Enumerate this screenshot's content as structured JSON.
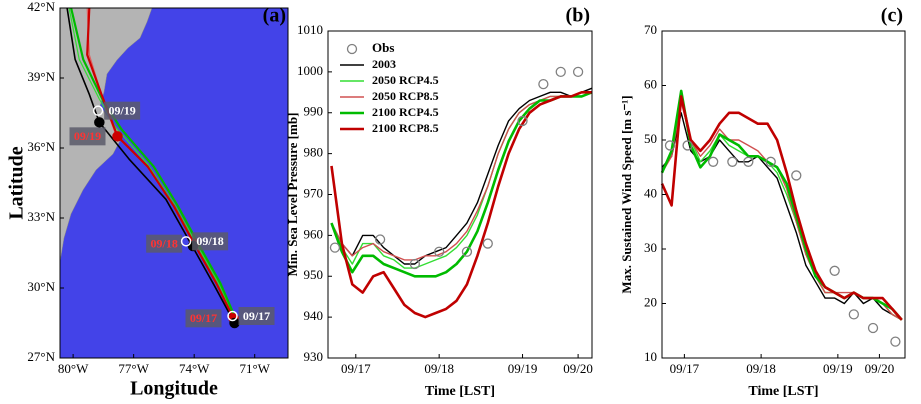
{
  "chart_data": [
    {
      "type": "map",
      "title": "(a)",
      "xlabel": "Longitude",
      "ylabel": "Latitude",
      "xlim": [
        -80.65,
        -69.35
      ],
      "ylim": [
        27,
        42
      ],
      "xticks": [
        {
          "value": -80,
          "label": "80°W"
        },
        {
          "value": -77,
          "label": "77°W"
        },
        {
          "value": -74,
          "label": "74°W"
        },
        {
          "value": -71,
          "label": "71°W"
        }
      ],
      "yticks": [
        {
          "value": 27,
          "label": "27°N"
        },
        {
          "value": 30,
          "label": "30°N"
        },
        {
          "value": 33,
          "label": "33°N"
        },
        {
          "value": 36,
          "label": "36°N"
        },
        {
          "value": 39,
          "label": "39°N"
        },
        {
          "value": 42,
          "label": "42°N"
        }
      ],
      "series": [
        {
          "color": "#e06060",
          "linewidth": 1.2,
          "x": [
            -79.3,
            -79.2,
            -78.6,
            -77.9,
            -76.3,
            -75.0,
            -74.0,
            -72.9,
            -72.0
          ],
          "values": [
            42,
            40.0,
            38.3,
            36.6,
            35.2,
            33.5,
            31.9,
            30.2,
            28.7
          ]
        },
        {
          "color": "#33dd33",
          "linewidth": 1.2,
          "x": [
            -80.2,
            -79.7,
            -78.7,
            -77.9,
            -76.3,
            -75.0,
            -73.9,
            -72.8,
            -71.9
          ],
          "values": [
            42,
            39.8,
            38.1,
            36.9,
            35.3,
            33.6,
            31.9,
            30.2,
            28.6
          ]
        },
        {
          "color": "#00bb00",
          "linewidth": 2.2,
          "x": [
            -80.1,
            -79.5,
            -78.5,
            -77.6,
            -76.0,
            -74.8,
            -73.8,
            -72.7,
            -71.9
          ],
          "values": [
            42,
            39.8,
            38.0,
            36.8,
            35.2,
            33.5,
            31.9,
            30.2,
            28.6
          ]
        },
        {
          "color": "#000000",
          "linewidth": 1.6,
          "x": [
            -80.3,
            -79.9,
            -79.2,
            -78.7,
            -77.2,
            -75.4,
            -74.1,
            -73.0,
            -72.0
          ],
          "values": [
            42,
            39.8,
            38.3,
            37.1,
            35.5,
            33.8,
            31.8,
            30.1,
            28.5
          ]
        },
        {
          "color": "#cc0000",
          "linewidth": 2.2,
          "x": [
            -79.2,
            -79.3,
            -78.6,
            -77.8,
            -76.3,
            -75.0,
            -74.0,
            -72.9,
            -72.05
          ],
          "values": [
            42,
            40.0,
            38.3,
            36.5,
            35.2,
            33.5,
            31.9,
            30.2,
            28.7
          ]
        }
      ],
      "points": [
        {
          "color": "#cc0000",
          "label_color": "#ff3333",
          "hollow": false,
          "label_side": "left",
          "x": [
            -77.8,
            -74.0,
            -72.05
          ],
          "values": [
            36.5,
            31.9,
            28.7
          ],
          "labels": [
            "09/19",
            "09/18",
            "09/17"
          ]
        },
        {
          "color": "#000000",
          "hollow": false,
          "x": [
            -78.7,
            -74.06,
            -72.0
          ],
          "values": [
            37.1,
            31.8,
            28.5
          ]
        },
        {
          "color": "#ffffff",
          "label_color": "#ffffff",
          "hollow": true,
          "label_side": "right",
          "x": [
            -78.76,
            -74.4,
            -72.1
          ],
          "values": [
            37.6,
            32.0,
            28.8
          ],
          "labels": [
            "09/19",
            "09/18",
            "09/17"
          ]
        }
      ]
    },
    {
      "type": "line",
      "title": "(b)",
      "xlabel": "Time [LST]",
      "ylabel": "Min. Sea Level Pressure [mb]",
      "legend": "upper left",
      "x": [
        -7,
        -4,
        -1,
        2,
        5,
        8,
        11,
        14,
        17,
        20,
        23,
        26,
        29,
        32,
        35,
        38,
        41,
        44,
        47,
        50,
        53,
        56,
        59,
        62,
        65,
        68
      ],
      "xlim": [
        -8,
        68
      ],
      "xticks": [
        {
          "value": 0,
          "label": "09/17"
        },
        {
          "value": 24,
          "label": "09/18"
        },
        {
          "value": 48,
          "label": "09/19"
        },
        {
          "value": 64,
          "label": "09/20"
        }
      ],
      "ylim": [
        930,
        1010
      ],
      "yticks": [
        930,
        940,
        950,
        960,
        970,
        980,
        990,
        1000,
        1010
      ],
      "obs": {
        "name": "Obs",
        "color": "#808080",
        "x": [
          -6,
          7,
          17,
          24,
          32,
          38,
          48,
          54,
          59,
          64
        ],
        "values": [
          957,
          959,
          953,
          956,
          956,
          958,
          988,
          997,
          1000,
          1000
        ]
      },
      "series": [
        {
          "name": "2003",
          "color": "#000000",
          "linewidth": 1.4,
          "values": [
            963,
            958,
            955,
            960,
            960,
            957,
            955,
            953,
            953,
            955,
            956,
            957,
            960,
            963,
            968,
            975,
            982,
            988,
            991,
            993,
            994,
            995,
            995,
            994,
            995,
            996
          ]
        },
        {
          "name": "2050 RCP4.5",
          "color": "#33dd33",
          "linewidth": 1.4,
          "values": [
            963,
            957,
            953,
            958,
            958,
            955,
            954,
            952,
            952,
            953,
            954,
            955,
            957,
            960,
            965,
            972,
            980,
            986,
            990,
            992,
            993,
            994,
            994,
            994,
            994,
            995
          ]
        },
        {
          "name": "2050 RCP8.5",
          "color": "#d05050",
          "linewidth": 1.4,
          "values": [
            963,
            958,
            955,
            957,
            958,
            956,
            955,
            954,
            954,
            955,
            955,
            956,
            958,
            961,
            966,
            972,
            980,
            986,
            990,
            992,
            993,
            994,
            994,
            994,
            995,
            995
          ]
        },
        {
          "name": "2100 RCP4.5",
          "color": "#00bb00",
          "linewidth": 2.6,
          "values": [
            963,
            956,
            951,
            955,
            955,
            953,
            952,
            951,
            950,
            950,
            950,
            951,
            953,
            956,
            961,
            968,
            976,
            983,
            988,
            991,
            993,
            993,
            994,
            994,
            994,
            995
          ]
        },
        {
          "name": "2100 RCP8.5",
          "color": "#c00000",
          "linewidth": 2.6,
          "values": [
            977,
            958,
            948,
            946,
            950,
            951,
            947,
            943,
            941,
            940,
            941,
            942,
            944,
            948,
            955,
            963,
            972,
            980,
            986,
            990,
            992,
            993,
            994,
            994,
            995,
            995
          ]
        }
      ]
    },
    {
      "type": "line",
      "title": "(c)",
      "xlabel": "Time [LST]",
      "ylabel": "Max. Sustained Wind Speed [m s⁻¹]",
      "x": [
        -7,
        -4,
        -1,
        2,
        5,
        8,
        11,
        14,
        17,
        20,
        23,
        26,
        29,
        32,
        35,
        38,
        41,
        44,
        47,
        50,
        53,
        56,
        59,
        62,
        65,
        68
      ],
      "xlim": [
        -7,
        69
      ],
      "xticks": [
        {
          "value": 0,
          "label": "09/17"
        },
        {
          "value": 24,
          "label": "09/18"
        },
        {
          "value": 48,
          "label": "09/19"
        },
        {
          "value": 61,
          "label": "09/20"
        }
      ],
      "ylim": [
        10,
        70
      ],
      "yticks": [
        10,
        20,
        30,
        40,
        50,
        60,
        70
      ],
      "obs": {
        "color": "#808080",
        "x": [
          -4.5,
          1,
          9,
          15,
          20,
          27,
          35,
          47,
          53,
          59,
          66
        ],
        "values": [
          49,
          49,
          46,
          46,
          46,
          46,
          43.5,
          26,
          18,
          15.5,
          13
        ]
      },
      "series": [
        {
          "color": "#000000",
          "linewidth": 1.4,
          "values": [
            45,
            47,
            55,
            48,
            46,
            47,
            50,
            48,
            46,
            46,
            47,
            45,
            43,
            38,
            33,
            27,
            24,
            21,
            21,
            20,
            22,
            20,
            21,
            19,
            18,
            17
          ]
        },
        {
          "color": "#33dd33",
          "linewidth": 1.4,
          "values": [
            44,
            48,
            58,
            50,
            46,
            48,
            51,
            49,
            48,
            47,
            47,
            46,
            44,
            40,
            35,
            29,
            25,
            22,
            22,
            21,
            22,
            21,
            21,
            20,
            18,
            17
          ]
        },
        {
          "color": "#d05050",
          "linewidth": 1.4,
          "values": [
            44,
            47,
            57,
            50,
            47,
            49,
            52,
            50,
            50,
            49,
            48,
            46,
            45,
            41,
            35,
            29,
            25,
            22,
            22,
            22,
            22,
            21,
            21,
            20,
            18,
            17
          ]
        },
        {
          "color": "#00bb00",
          "linewidth": 2.6,
          "values": [
            44,
            48,
            59,
            49,
            45,
            47,
            51,
            50,
            49,
            47,
            47,
            46,
            45,
            42,
            36,
            30,
            25,
            23,
            22,
            21,
            22,
            21,
            21,
            20,
            19,
            17
          ]
        },
        {
          "color": "#c00000",
          "linewidth": 2.6,
          "values": [
            42,
            38,
            58,
            50,
            48,
            50,
            53,
            55,
            55,
            54,
            53,
            53,
            50,
            44,
            37,
            31,
            26,
            23,
            22,
            21,
            22,
            21,
            21,
            21,
            19,
            17
          ]
        }
      ]
    }
  ]
}
